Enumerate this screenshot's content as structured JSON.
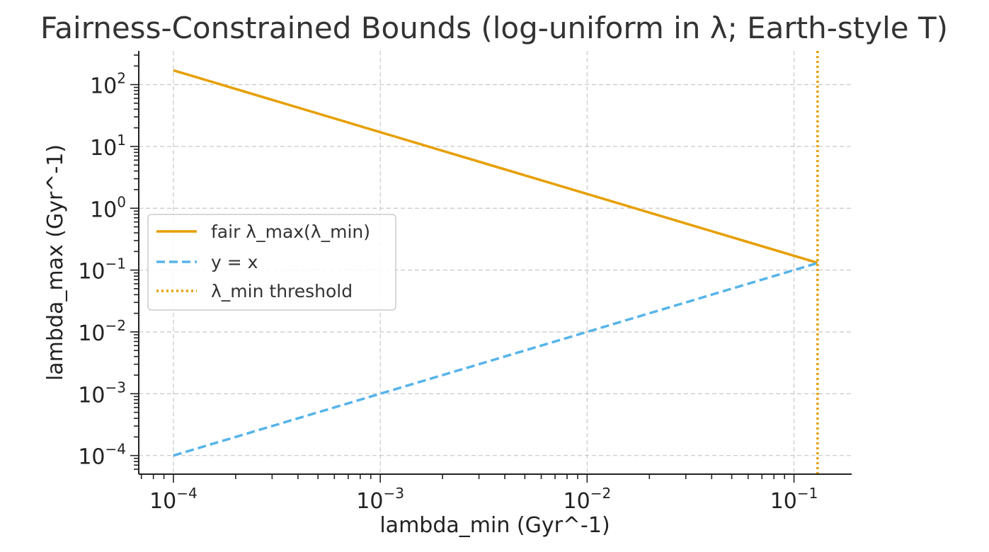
{
  "chart_data": {
    "type": "line",
    "title": "Fairness-Constrained Bounds (log-uniform in λ; Earth-style T)",
    "xlabel": "lambda_min (Gyr^-1)",
    "ylabel": "lambda_max (Gyr^-1)",
    "xscale": "log",
    "yscale": "log",
    "xlim": [
      6.8e-05,
      0.19
    ],
    "ylim": [
      5e-05,
      350
    ],
    "grid": true,
    "legend_position": "center-left",
    "x_ticks": [
      {
        "base": "10",
        "exp": "−4",
        "value": 0.0001
      },
      {
        "base": "10",
        "exp": "−3",
        "value": 0.001
      },
      {
        "base": "10",
        "exp": "−2",
        "value": 0.01
      },
      {
        "base": "10",
        "exp": "−1",
        "value": 0.1
      }
    ],
    "y_ticks": [
      {
        "base": "10",
        "exp": "−4",
        "value": 0.0001
      },
      {
        "base": "10",
        "exp": "−3",
        "value": 0.001
      },
      {
        "base": "10",
        "exp": "−2",
        "value": 0.01
      },
      {
        "base": "10",
        "exp": "−1",
        "value": 0.1
      },
      {
        "base": "10",
        "exp": "0",
        "value": 1
      },
      {
        "base": "10",
        "exp": "1",
        "value": 10
      },
      {
        "base": "10",
        "exp": "2",
        "value": 100
      }
    ],
    "series": [
      {
        "name": "fair λ_max(λ_min)",
        "style": "solid",
        "color": "#E69F00",
        "x": [
          0.0001,
          0.13
        ],
        "y": [
          170,
          0.131
        ]
      },
      {
        "name": "y = x",
        "style": "dashed",
        "color": "#56B4E9",
        "x": [
          0.0001,
          0.13
        ],
        "y": [
          0.0001,
          0.13
        ]
      },
      {
        "name": "λ_min threshold",
        "style": "dotted",
        "color": "#E69F00",
        "vline_x": 0.13
      }
    ]
  }
}
